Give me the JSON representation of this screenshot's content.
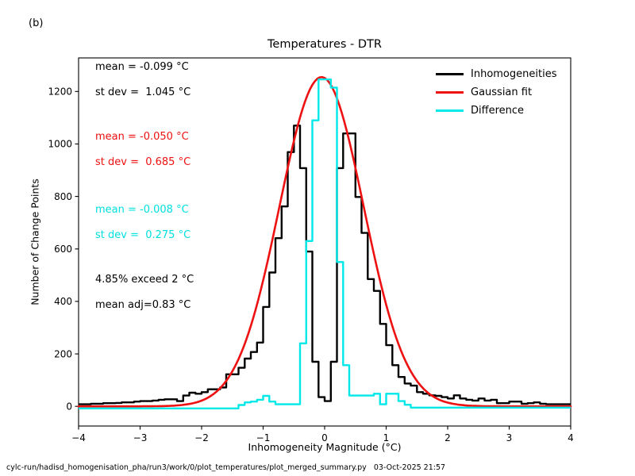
{
  "figure_label": "(b)",
  "footer": "cylc-run/hadisd_homogenisation_pha/run3/work/0/plot_temperatures/plot_merged_summary.py   03-Oct-2025 21:57",
  "annotations": [
    {
      "text": "mean = -0.099 °C",
      "color": "#000000"
    },
    {
      "text": "st dev =  1.045 °C",
      "color": "#000000"
    },
    {
      "text": "mean = -0.050 °C",
      "color": "#ee1111"
    },
    {
      "text": "st dev =  0.685 °C",
      "color": "#ee1111"
    },
    {
      "text": "mean = -0.008 °C",
      "color": "#00e0e0"
    },
    {
      "text": "st dev =  0.275 °C",
      "color": "#00e0e0"
    },
    {
      "text": "4.85% exceed 2 °C",
      "color": "#000000"
    },
    {
      "text": "mean adj=0.83 °C",
      "color": "#000000"
    }
  ],
  "chart_data": {
    "type": "bar",
    "subtype": "step-histogram-with-fit",
    "title": "Temperatures - DTR",
    "xlabel": "Inhomogeneity Magnitude (°C)",
    "ylabel": "Number of Change Points",
    "xlim": [
      -4,
      4
    ],
    "ylim": [
      -75,
      1328
    ],
    "grid": false,
    "legend_position": "upper right",
    "xticks": [
      {
        "value": -4,
        "label": "−4"
      },
      {
        "value": -3,
        "label": "−3"
      },
      {
        "value": -2,
        "label": "−2"
      },
      {
        "value": -1,
        "label": "−1"
      },
      {
        "value": 0,
        "label": "0"
      },
      {
        "value": 1,
        "label": "1"
      },
      {
        "value": 2,
        "label": "2"
      },
      {
        "value": 3,
        "label": "3"
      },
      {
        "value": 4,
        "label": "4"
      }
    ],
    "yticks": [
      {
        "value": 0,
        "label": "0"
      },
      {
        "value": 200,
        "label": "200"
      },
      {
        "value": 400,
        "label": "400"
      },
      {
        "value": 600,
        "label": "600"
      },
      {
        "value": 800,
        "label": "800"
      },
      {
        "value": 1000,
        "label": "1000"
      },
      {
        "value": 1200,
        "label": "1200"
      }
    ],
    "bin_start": -4.0,
    "bin_width": 0.1,
    "series": [
      {
        "name": "Inhomogeneities",
        "color": "#000000",
        "style": "step",
        "stats": {
          "mean": -0.099,
          "st_dev": 1.045
        },
        "values": [
          8,
          8,
          10,
          10,
          12,
          12,
          13,
          15,
          15,
          18,
          20,
          20,
          22,
          25,
          27,
          27,
          20,
          41,
          52,
          48,
          54,
          65,
          65,
          72,
          122,
          122,
          147,
          182,
          207,
          243,
          379,
          510,
          641,
          762,
          969,
          1070,
          908,
          590,
          170,
          35,
          20,
          170,
          908,
          1040,
          1040,
          798,
          661,
          485,
          440,
          314,
          233,
          157,
          112,
          87,
          79,
          54,
          48,
          42,
          40,
          35,
          30,
          42,
          30,
          25,
          22,
          30,
          22,
          25,
          12,
          12,
          18,
          18,
          10,
          12,
          15,
          10,
          8,
          8,
          8,
          8
        ]
      },
      {
        "name": "Gaussian fit",
        "color": "#ee1111",
        "style": "gaussian",
        "stats": {
          "mean": -0.05,
          "st_dev": 0.685
        },
        "amplitude": 1255,
        "mean": -0.05,
        "sigma": 0.685
      },
      {
        "name": "Difference",
        "color": "#00e8e8",
        "style": "step",
        "stats": {
          "mean": -0.008,
          "st_dev": 0.275
        },
        "values": [
          -8,
          -8,
          -8,
          -8,
          -8,
          -8,
          -8,
          -8,
          -8,
          -8,
          -8,
          -8,
          -8,
          -8,
          -8,
          -8,
          -8,
          -8,
          -8,
          -8,
          -8,
          -8,
          -8,
          -8,
          -8,
          -8,
          5,
          15,
          18,
          25,
          40,
          18,
          8,
          8,
          8,
          8,
          240,
          630,
          1090,
          1246,
          1246,
          1215,
          550,
          157,
          41,
          41,
          41,
          41,
          48,
          8,
          48,
          48,
          20,
          6,
          -5,
          -5,
          -5,
          -5,
          -5,
          -5,
          -5,
          -5,
          -5,
          -5,
          -5,
          -5,
          -5,
          -5,
          -5,
          -5,
          -5,
          -5,
          -5,
          -5,
          -5,
          -5,
          -5,
          -5,
          -5,
          -5
        ]
      }
    ],
    "exceed_note": "4.85% exceed 2 °C",
    "mean_adjustment_note": "mean adj=0.83 °C"
  }
}
